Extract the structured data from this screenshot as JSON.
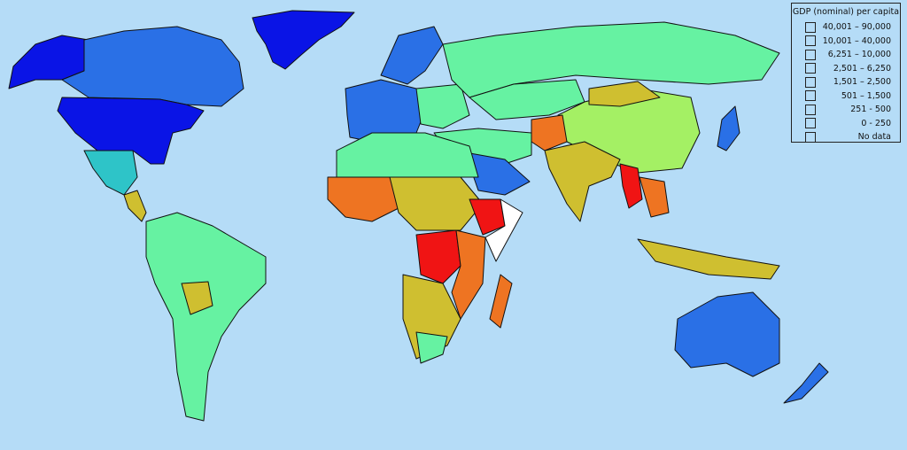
{
  "legend": {
    "title": "GDP (nominal) per capita",
    "items": [
      {
        "label": "40,001 – 90,000",
        "color": "#0a14e6"
      },
      {
        "label": "10,001 – 40,000",
        "color": "#2a70e6"
      },
      {
        "label": "6,251 – 10,000",
        "color": "#2ec4c8"
      },
      {
        "label": "2,501 – 6,250",
        "color": "#66f2a2"
      },
      {
        "label": "1,501 – 2,500",
        "color": "#a4f064"
      },
      {
        "label": "501 – 1,500",
        "color": "#cfbf30"
      },
      {
        "label": "251 - 500",
        "color": "#ee7422"
      },
      {
        "label": "0 - 250",
        "color": "#f01414"
      },
      {
        "label": "No data",
        "color": "#ffffff"
      }
    ]
  },
  "colors": {
    "ocean": "#b5dcf7"
  }
}
